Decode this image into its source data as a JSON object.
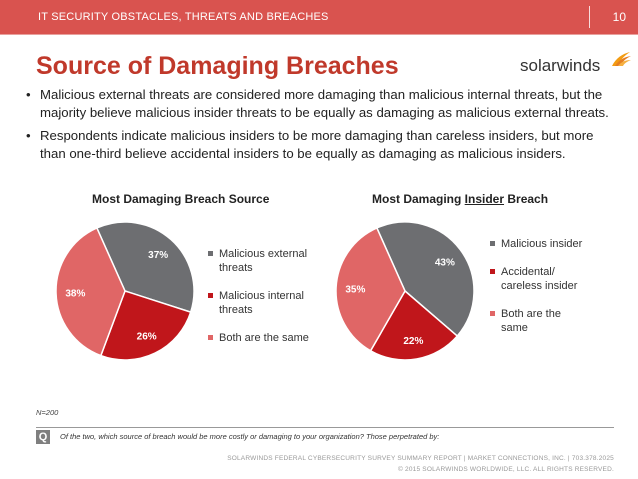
{
  "header": {
    "section": "IT SECURITY OBSTACLES, THREATS AND BREACHES",
    "page_number": "10",
    "bar_color": "#d9534f"
  },
  "title": "Source of Damaging Breaches",
  "logo": {
    "text": "solarwinds",
    "icon": "solarwinds-flame-icon"
  },
  "bullets": [
    "Malicious external threats are considered more damaging than malicious internal threats, but the majority believe malicious insider threats to be equally as damaging as malicious external threats.",
    "Respondents indicate malicious insiders to be more damaging than careless insiders, but more than one-third believe accidental insiders to be equally as damaging as malicious insiders."
  ],
  "chart_data": [
    {
      "type": "pie",
      "title": "Most Damaging Breach Source",
      "slices": [
        {
          "label": "Malicious external threats",
          "value": 37,
          "display": "37%",
          "color": "#6d6e71"
        },
        {
          "label": "Malicious internal threats",
          "value": 26,
          "display": "26%",
          "color": "#c0161b"
        },
        {
          "label": "Both are the same",
          "value": 38,
          "display": "38%",
          "color": "#e06666"
        }
      ],
      "legend": [
        "Malicious external threats",
        "Malicious internal threats",
        "Both are the same"
      ],
      "legend_position": "right"
    },
    {
      "type": "pie",
      "title_prefix": "Most Damaging ",
      "title_underlined": "Insider",
      "title_suffix": " Breach",
      "slices": [
        {
          "label": "Malicious insider",
          "value": 43,
          "display": "43%",
          "color": "#6d6e71"
        },
        {
          "label": "Accidental/ careless insider",
          "value": 22,
          "display": "22%",
          "color": "#c0161b"
        },
        {
          "label": "Both are the same",
          "value": 35,
          "display": "35%",
          "color": "#e06666"
        }
      ],
      "legend": [
        "Malicious insider",
        "Accidental/ careless insider",
        "Both are the same"
      ],
      "legend_position": "right"
    }
  ],
  "note": "N=200",
  "question_badge": "Q",
  "question": "Of the two, which source of breach would be more costly or damaging to your organization?    Those perpetrated by:",
  "footer": {
    "line1": "SOLARWINDS FEDERAL CYBERSECURITY SURVEY SUMMARY REPORT  |  MARKET CONNECTIONS, INC.  |  703.378.2025",
    "line2": "© 2015 SOLARWINDS WORLDWIDE, LLC. ALL RIGHTS RESERVED."
  }
}
